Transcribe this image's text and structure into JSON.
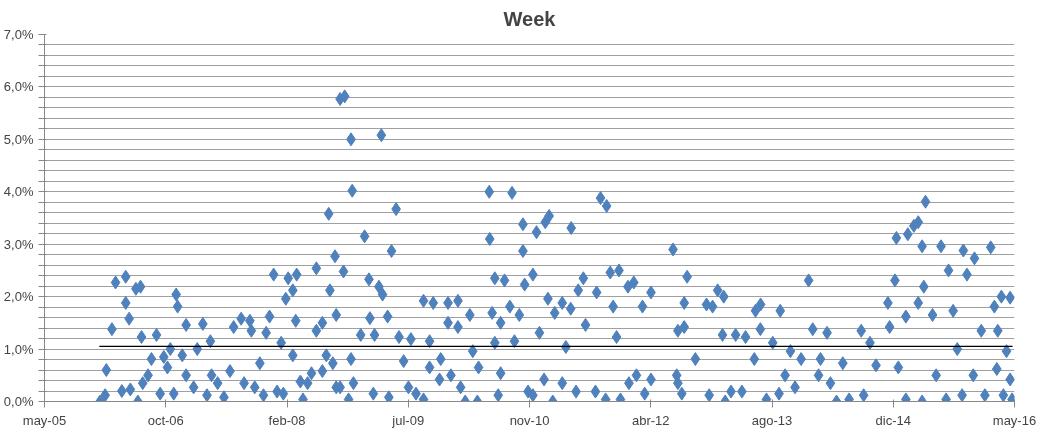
{
  "chart_data": {
    "type": "scatter",
    "title": "Week",
    "xlim": [
      "2005-05-31",
      "2016-05-13"
    ],
    "xticks": [
      {
        "value": "2005-05-31",
        "label": "may-05"
      },
      {
        "value": "2006-10-13",
        "label": "oct-06"
      },
      {
        "value": "2008-02-25",
        "label": "feb-08"
      },
      {
        "value": "2009-07-09",
        "label": "jul-09"
      },
      {
        "value": "2010-11-21",
        "label": "nov-10"
      },
      {
        "value": "2012-04-04",
        "label": "abr-12"
      },
      {
        "value": "2013-08-17",
        "label": "ago-13"
      },
      {
        "value": "2014-12-30",
        "label": "dic-14"
      },
      {
        "value": "2016-05-13",
        "label": "may-16"
      }
    ],
    "ylim": [
      0,
      7
    ],
    "yticks": [
      {
        "value": 0,
        "label": "0,0%"
      },
      {
        "value": 0.2,
        "label": null
      },
      {
        "value": 0.4,
        "label": null
      },
      {
        "value": 0.6,
        "label": null
      },
      {
        "value": 0.8,
        "label": null
      },
      {
        "value": 1,
        "label": "1,0%"
      },
      {
        "value": 1.2,
        "label": null
      },
      {
        "value": 1.4,
        "label": null
      },
      {
        "value": 1.6,
        "label": null
      },
      {
        "value": 1.8,
        "label": null
      },
      {
        "value": 2,
        "label": "2,0%"
      },
      {
        "value": 2.2,
        "label": null
      },
      {
        "value": 2.4,
        "label": null
      },
      {
        "value": 2.6,
        "label": null
      },
      {
        "value": 2.8,
        "label": null
      },
      {
        "value": 3,
        "label": "3,0%"
      },
      {
        "value": 3.2,
        "label": null
      },
      {
        "value": 3.4,
        "label": null
      },
      {
        "value": 3.6,
        "label": null
      },
      {
        "value": 3.8,
        "label": null
      },
      {
        "value": 4,
        "label": "4,0%"
      },
      {
        "value": 4.2,
        "label": null
      },
      {
        "value": 4.4,
        "label": null
      },
      {
        "value": 4.6,
        "label": null
      },
      {
        "value": 4.8,
        "label": null
      },
      {
        "value": 5,
        "label": "5,0%"
      },
      {
        "value": 5.2,
        "label": null
      },
      {
        "value": 5.4,
        "label": null
      },
      {
        "value": 5.6,
        "label": null
      },
      {
        "value": 5.8,
        "label": null
      },
      {
        "value": 6,
        "label": "6,0%"
      },
      {
        "value": 6.2,
        "label": null
      },
      {
        "value": 6.4,
        "label": null
      },
      {
        "value": 6.6,
        "label": null
      },
      {
        "value": 6.8,
        "label": null
      },
      {
        "value": 7,
        "label": "7,0%"
      }
    ],
    "grid": "y",
    "marker": "diamond",
    "series": [
      {
        "color": "#4f81bd",
        "x": [
          "2006-01-15",
          "2006-02-05",
          "2006-02-10",
          "2006-03-05",
          "2006-03-20",
          "2006-05-01",
          "2006-05-01",
          "2006-04-15",
          "2006-05-20",
          "2006-05-15",
          "2006-06-12",
          "2006-07-01",
          "2006-06-20",
          "2006-07-10",
          "2006-07-05",
          "2006-08-01",
          "2006-09-05",
          "2006-08-15",
          "2006-09-20",
          "2006-10-05",
          "2006-10-20",
          "2006-11-25",
          "2006-12-01",
          "2006-11-15",
          "2006-11-01",
          "2006-12-20",
          "2007-01-05",
          "2007-01-05",
          "2007-02-05",
          "2007-02-20",
          "2007-03-15",
          "2007-04-01",
          "2007-04-15",
          "2007-04-20",
          "2007-05-15",
          "2007-06-10",
          "2007-07-05",
          "2007-07-20",
          "2007-08-20",
          "2007-09-01",
          "2007-09-25",
          "2007-10-01",
          "2007-10-15",
          "2007-11-05",
          "2007-11-20",
          "2007-12-01",
          "2007-12-15",
          "2008-01-01",
          "2008-01-15",
          "2008-02-01",
          "2008-02-10",
          "2008-02-20",
          "2008-03-01",
          "2008-03-20",
          "2008-04-05",
          "2008-04-01",
          "2008-03-20",
          "2008-04-20",
          "2008-05-01",
          "2008-05-20",
          "2008-06-05",
          "2008-06-25",
          "2008-06-25",
          "2008-07-20",
          "2008-07-20",
          "2008-08-05",
          "2008-08-15",
          "2008-08-20",
          "2008-09-01",
          "2008-09-10",
          "2008-09-15",
          "2008-09-15",
          "2008-10-01",
          "2008-10-20",
          "2008-11-15",
          "2008-11-20",
          "2009-01-10",
          "2009-03-20",
          "2009-05-20",
          "2009-05-01",
          "2008-10-15",
          "2009-01-28",
          "2009-03-10",
          "2009-03-25",
          "2009-02-01",
          "2009-04-15",
          "2008-11-05",
          "2008-11-25",
          "2008-10-01",
          "2009-02-15",
          "2009-04-20",
          "2008-12-25",
          "2009-02-20",
          "2009-06-01",
          "2008-11-15",
          "2009-06-20",
          "2009-07-20",
          "2009-07-10",
          "2009-08-10",
          "2009-09-10",
          "2009-09-10",
          "2009-10-20",
          "2009-12-20",
          "2010-01-30",
          "2009-12-20",
          "2010-01-30",
          "2009-10-05",
          "2009-10-05",
          "2009-11-20",
          "2009-11-15",
          "2010-01-01",
          "2010-02-10",
          "2010-03-01",
          "2010-03-20",
          "2010-04-01",
          "2010-04-25",
          "2010-04-20",
          "2010-06-08",
          "2010-06-10",
          "2010-06-20",
          "2010-07-01",
          "2010-07-01",
          "2010-08-10",
          "2010-07-25",
          "2010-07-25",
          "2010-07-15",
          "2010-09-10",
          "2010-09-01",
          "2010-09-20",
          "2010-10-10",
          "2010-10-25",
          "2010-10-25",
          "2010-11-01",
          "2010-11-15",
          "2010-12-05",
          "2010-12-05",
          "2010-12-20",
          "2011-01-01",
          "2011-01-25",
          "2011-02-10",
          "2011-01-20",
          "2011-02-05",
          "2011-02-25",
          "2011-03-05",
          "2011-04-05",
          "2011-04-20",
          "2011-04-05",
          "2011-05-10",
          "2011-05-12",
          "2011-06-01",
          "2011-06-10",
          "2011-07-01",
          "2011-07-10",
          "2011-08-20",
          "2011-08-25",
          "2011-09-10",
          "2011-10-05",
          "2011-10-01",
          "2011-10-20",
          "2011-11-25",
          "2011-11-01",
          "2011-11-15",
          "2011-12-01",
          "2012-01-01",
          "2012-01-25",
          "2012-01-05",
          "2012-02-05",
          "2012-03-01",
          "2012-03-10",
          "2012-04-05",
          "2012-07-05",
          "2012-07-25",
          "2012-08-20",
          "2012-09-01",
          "2012-07-25",
          "2012-04-05",
          "2012-08-20",
          "2012-07-20",
          "2012-08-10",
          "2012-10-05",
          "2012-11-20",
          "2012-12-15",
          "2013-01-05",
          "2013-01-30",
          "2012-12-01",
          "2013-02-05",
          "2013-01-25",
          "2013-03-01",
          "2013-03-20",
          "2013-04-15",
          "2013-04-30",
          "2013-06-10",
          "2013-07-01",
          "2013-06-05",
          "2013-06-30",
          "2013-07-25",
          "2013-08-20",
          "2013-09-20",
          "2013-09-15",
          "2013-10-10",
          "2013-11-01",
          "2013-11-20",
          "2013-12-15",
          "2014-01-15",
          "2014-02-01",
          "2014-02-25",
          "2014-03-05",
          "2014-04-01",
          "2014-04-15",
          "2014-05-10",
          "2014-06-05",
          "2014-07-01",
          "2014-08-20",
          "2014-08-30",
          "2014-09-25",
          "2014-10-20",
          "2014-12-08",
          "2014-12-15",
          "2015-01-06",
          "2015-01-12",
          "2015-01-20",
          "2015-02-20",
          "2015-02-20",
          "2015-02-28",
          "2015-03-25",
          "2015-04-12",
          "2015-04-28",
          "2015-05-12",
          "2015-05-05",
          "2015-04-12",
          "2015-04-28",
          "2015-06-10",
          "2015-06-25",
          "2015-07-15",
          "2015-08-05",
          "2015-08-15",
          "2015-09-03",
          "2015-09-20",
          "2015-10-10",
          "2015-10-15",
          "2015-10-30",
          "2015-11-30",
          "2015-11-25",
          "2015-12-28",
          "2016-01-12",
          "2016-02-05",
          "2016-02-20",
          "2016-03-05",
          "2016-03-20",
          "2016-04-25",
          "2016-04-10",
          "2016-04-25",
          "2016-05-03",
          "2016-03-28",
          "2016-03-01"
        ],
        "values": [
          0.0,
          0.12,
          0.6,
          1.38,
          2.27,
          2.38,
          1.88,
          0.2,
          0.23,
          1.58,
          2.15,
          2.19,
          0.0,
          0.35,
          1.23,
          0.5,
          1.27,
          0.81,
          0.15,
          0.85,
          0.65,
          2.04,
          1.81,
          0.15,
          1.0,
          0.88,
          1.46,
          0.5,
          0.27,
          1.0,
          1.48,
          0.12,
          1.15,
          0.5,
          0.35,
          0.08,
          0.58,
          1.42,
          1.58,
          0.35,
          1.54,
          1.35,
          0.27,
          0.73,
          0.12,
          1.31,
          1.62,
          2.42,
          0.19,
          1.12,
          0.15,
          1.96,
          2.35,
          2.12,
          2.42,
          1.54,
          0.88,
          0.38,
          0.04,
          0.35,
          0.54,
          2.54,
          1.35,
          1.5,
          0.58,
          0.88,
          3.58,
          2.12,
          0.73,
          2.77,
          1.65,
          0.27,
          5.77,
          5.82,
          5.0,
          4.02,
          3.15,
          5.08,
          3.67,
          2.87,
          2.48,
          2.33,
          2.19,
          2.04,
          1.59,
          1.62,
          0.04,
          0.35,
          0.27,
          0.15,
          0.08,
          1.27,
          1.27,
          1.23,
          0.81,
          0.77,
          1.19,
          0.27,
          0.15,
          0.04,
          1.92,
          1.88,
          1.88,
          1.92,
          1.5,
          1.42,
          1.15,
          0.65,
          0.81,
          0.42,
          0.5,
          0.27,
          0.0,
          1.65,
          0.96,
          0.65,
          0.0,
          4.0,
          3.1,
          1.69,
          1.12,
          2.35,
          2.31,
          1.5,
          0.54,
          0.12,
          3.98,
          1.81,
          1.15,
          1.65,
          3.38,
          2.87,
          2.23,
          0.19,
          2.42,
          0.12,
          3.23,
          1.31,
          3.42,
          3.54,
          0.42,
          1.96,
          0.0,
          1.69,
          1.88,
          1.04,
          0.35,
          1.77,
          3.31,
          0.19,
          2.12,
          2.35,
          1.46,
          0.19,
          2.08,
          3.88,
          3.73,
          0.04,
          2.46,
          2.5,
          1.81,
          1.23,
          0.04,
          2.19,
          2.27,
          0.35,
          0.5,
          1.81,
          0.15,
          2.08,
          2.9,
          1.35,
          1.88,
          2.38,
          0.35,
          0.42,
          1.42,
          0.5,
          0.15,
          0.81,
          1.85,
          1.81,
          2.12,
          2.0,
          0.12,
          0.0,
          1.27,
          0.19,
          1.27,
          0.19,
          1.23,
          1.73,
          1.85,
          0.81,
          1.38,
          0.04,
          1.12,
          1.73,
          0.15,
          0.5,
          0.96,
          0.27,
          0.81,
          2.31,
          1.38,
          0.5,
          0.81,
          1.31,
          0.35,
          0.0,
          0.73,
          0.04,
          1.35,
          0.12,
          1.12,
          0.69,
          1.88,
          1.42,
          2.31,
          3.12,
          0.65,
          0.04,
          1.62,
          3.19,
          3.35,
          3.42,
          2.96,
          3.81,
          2.19,
          1.88,
          0.0,
          1.65,
          0.5,
          2.96,
          0.04,
          2.5,
          1.73,
          1.0,
          0.12,
          2.88,
          2.42,
          2.73,
          0.5,
          1.35,
          0.12,
          2.94,
          1.81,
          1.35,
          2.0,
          1.98,
          0.96,
          0.42,
          0.04,
          0.12,
          0.62
        ]
      },
      {
        "type": "line",
        "color": "#000000",
        "marker": "none",
        "x": [
          "2006-01-12",
          "2016-05-05"
        ],
        "values": [
          1.05,
          1.05
        ]
      }
    ]
  }
}
